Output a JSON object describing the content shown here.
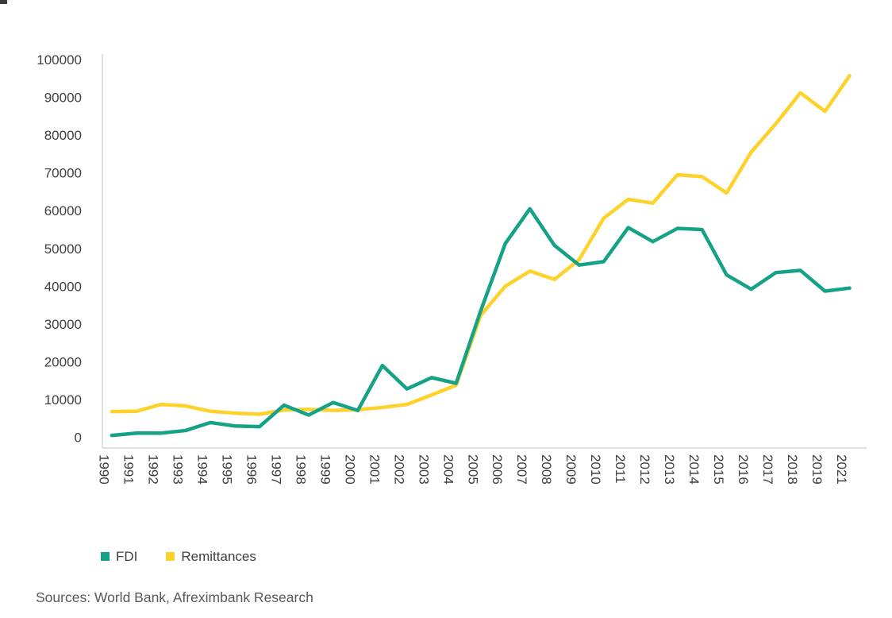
{
  "source": "Sources: World Bank, Afreximbank Research",
  "legend": {
    "items": [
      {
        "label": "FDI",
        "color": "#16A286"
      },
      {
        "label": "Remittances",
        "color": "#FFD22B"
      }
    ]
  },
  "colors": {
    "fdi_line": "#16A286",
    "remittances_line": "#FFD22B",
    "axis_line": "#D6D6D6",
    "axis_text": "#404040",
    "source_text": "#595959"
  },
  "chart_data": {
    "type": "line",
    "title": "",
    "xlabel": "",
    "ylabel": "",
    "categories": [
      "1990",
      "1991",
      "1992",
      "1993",
      "1994",
      "1995",
      "1996",
      "1997",
      "1998",
      "1999",
      "2000",
      "2001",
      "2002",
      "2003",
      "2004",
      "2005",
      "2006",
      "2007",
      "2008",
      "2009",
      "2010",
      "2011",
      "2012",
      "2013",
      "2014",
      "2015",
      "2016",
      "2017",
      "2018",
      "2019",
      "2021"
    ],
    "series": [
      {
        "name": "FDI",
        "color": "#16A286",
        "values": [
          500,
          1100,
          1100,
          1800,
          3900,
          3000,
          2800,
          8500,
          5900,
          9200,
          7100,
          19000,
          12800,
          15800,
          14300,
          33500,
          51300,
          60500,
          50800,
          45600,
          46500,
          55500,
          51800,
          55300,
          55000,
          43000,
          39200,
          43600,
          44200,
          38700,
          39500
        ]
      },
      {
        "name": "Remittances",
        "color": "#FFD22B",
        "values": [
          6800,
          6900,
          8700,
          8300,
          6900,
          6400,
          6100,
          7200,
          7400,
          7100,
          7300,
          7900,
          8700,
          11200,
          13800,
          32300,
          40000,
          44000,
          41800,
          47000,
          58000,
          63000,
          62000,
          69500,
          69000,
          64700,
          75500,
          83000,
          91200,
          86300,
          95700
        ]
      }
    ],
    "ylim": [
      0,
      100000
    ],
    "ytick_step": 10000,
    "yticks": [
      "0",
      "10000",
      "20000",
      "30000",
      "40000",
      "50000",
      "60000",
      "70000",
      "80000",
      "90000",
      "100000"
    ],
    "grid": false,
    "legend_position": "bottom-left",
    "x_label_rotation_deg": 90,
    "note": "x axis skips year 2020"
  }
}
